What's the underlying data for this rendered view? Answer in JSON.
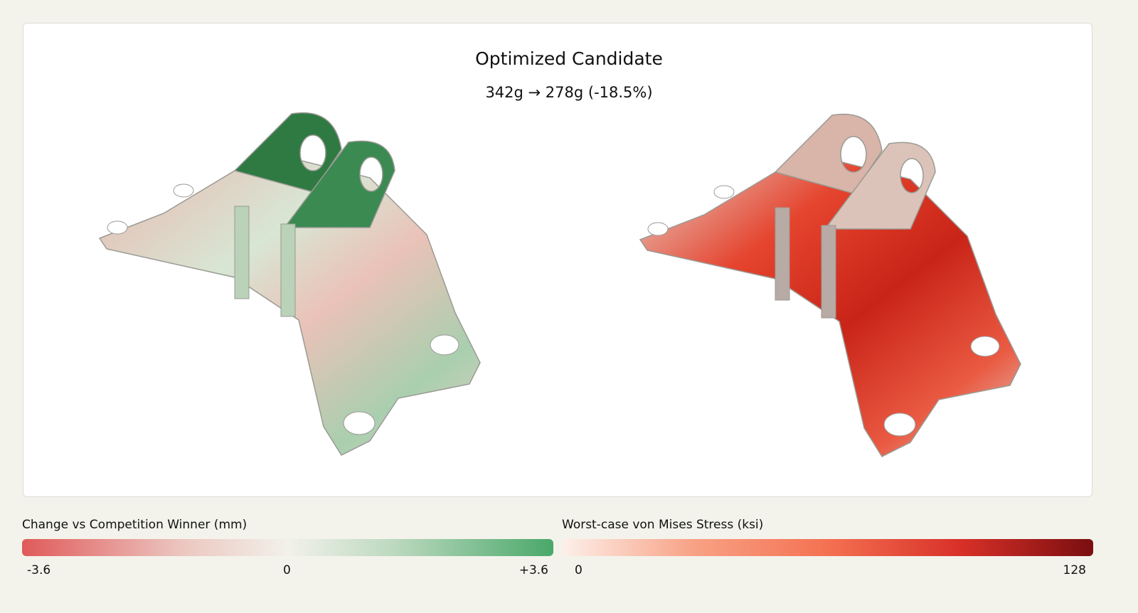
{
  "header": {
    "title": "Optimized Candidate",
    "subtitle": "342g → 278g (-18.5%)"
  },
  "legends": [
    {
      "title": "Change vs Competition Winner (mm)",
      "ticks": [
        "-3.6",
        "0",
        "+3.6"
      ]
    },
    {
      "title": "Worst-case von Mises Stress (ksi)",
      "ticks": [
        "0",
        "128"
      ]
    }
  ]
}
